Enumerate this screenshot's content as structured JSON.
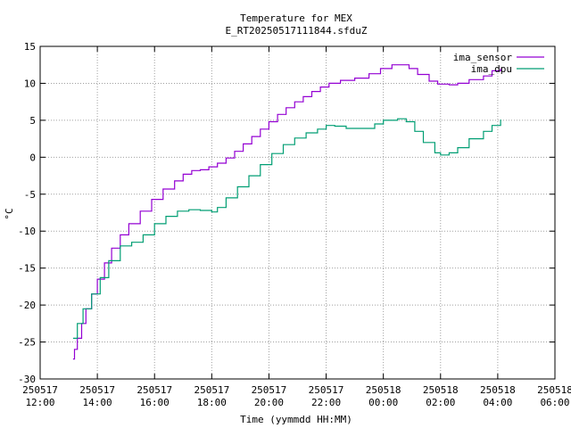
{
  "chart_data": {
    "type": "line",
    "title": "Temperature for MEX",
    "subtitle": "E_RT20250517111844.sfduZ",
    "xlabel": "Time (yymmdd HH:MM)",
    "ylabel": "°C",
    "ylim": [
      -30,
      15
    ],
    "xlim_hours": [
      12,
      30
    ],
    "grid": true,
    "legend_position": "top-right",
    "y_ticks": [
      -30,
      -25,
      -20,
      -15,
      -10,
      -5,
      0,
      5,
      10,
      15
    ],
    "x_ticks": [
      {
        "hour": 12,
        "date": "250517",
        "time": "12:00"
      },
      {
        "hour": 14,
        "date": "250517",
        "time": "14:00"
      },
      {
        "hour": 16,
        "date": "250517",
        "time": "16:00"
      },
      {
        "hour": 18,
        "date": "250517",
        "time": "18:00"
      },
      {
        "hour": 20,
        "date": "250517",
        "time": "20:00"
      },
      {
        "hour": 22,
        "date": "250517",
        "time": "22:00"
      },
      {
        "hour": 24,
        "date": "250518",
        "time": "00:00"
      },
      {
        "hour": 26,
        "date": "250518",
        "time": "02:00"
      },
      {
        "hour": 28,
        "date": "250518",
        "time": "04:00"
      },
      {
        "hour": 30,
        "date": "250518",
        "time": "06:00"
      }
    ],
    "series": [
      {
        "name": "ima_sensor",
        "color": "#9400d3",
        "points": [
          [
            13.15,
            -27.3
          ],
          [
            13.2,
            -26.0
          ],
          [
            13.3,
            -24.5
          ],
          [
            13.45,
            -22.5
          ],
          [
            13.6,
            -20.5
          ],
          [
            13.8,
            -18.5
          ],
          [
            14.0,
            -16.5
          ],
          [
            14.25,
            -14.3
          ],
          [
            14.5,
            -12.3
          ],
          [
            14.8,
            -10.5
          ],
          [
            15.1,
            -9.0
          ],
          [
            15.5,
            -7.3
          ],
          [
            15.9,
            -5.7
          ],
          [
            16.3,
            -4.3
          ],
          [
            16.7,
            -3.2
          ],
          [
            17.0,
            -2.3
          ],
          [
            17.3,
            -1.8
          ],
          [
            17.6,
            -1.7
          ],
          [
            17.9,
            -1.3
          ],
          [
            18.2,
            -0.8
          ],
          [
            18.5,
            -0.1
          ],
          [
            18.8,
            0.8
          ],
          [
            19.1,
            1.8
          ],
          [
            19.4,
            2.8
          ],
          [
            19.7,
            3.8
          ],
          [
            20.0,
            4.8
          ],
          [
            20.3,
            5.8
          ],
          [
            20.6,
            6.7
          ],
          [
            20.9,
            7.5
          ],
          [
            21.2,
            8.2
          ],
          [
            21.5,
            8.9
          ],
          [
            21.8,
            9.5
          ],
          [
            22.1,
            10.0
          ],
          [
            22.5,
            10.4
          ],
          [
            23.0,
            10.7
          ],
          [
            23.5,
            11.3
          ],
          [
            23.9,
            12.0
          ],
          [
            24.3,
            12.5
          ],
          [
            24.6,
            12.5
          ],
          [
            24.9,
            12.0
          ],
          [
            25.2,
            11.2
          ],
          [
            25.6,
            10.3
          ],
          [
            25.9,
            9.9
          ],
          [
            26.3,
            9.8
          ],
          [
            26.6,
            10.0
          ],
          [
            27.0,
            10.5
          ],
          [
            27.5,
            11.0
          ],
          [
            27.8,
            11.7
          ],
          [
            28.1,
            12.0
          ]
        ]
      },
      {
        "name": "ima_dpu",
        "color": "#009e73",
        "points": [
          [
            13.15,
            -24.5
          ],
          [
            13.3,
            -22.5
          ],
          [
            13.5,
            -20.5
          ],
          [
            13.8,
            -18.5
          ],
          [
            14.1,
            -16.3
          ],
          [
            14.4,
            -14.0
          ],
          [
            14.8,
            -12.0
          ],
          [
            15.2,
            -11.5
          ],
          [
            15.6,
            -10.5
          ],
          [
            16.0,
            -9.0
          ],
          [
            16.4,
            -8.0
          ],
          [
            16.8,
            -7.3
          ],
          [
            17.2,
            -7.1
          ],
          [
            17.6,
            -7.2
          ],
          [
            18.0,
            -7.4
          ],
          [
            18.2,
            -6.8
          ],
          [
            18.5,
            -5.5
          ],
          [
            18.9,
            -4.0
          ],
          [
            19.3,
            -2.5
          ],
          [
            19.7,
            -1.0
          ],
          [
            20.1,
            0.5
          ],
          [
            20.5,
            1.7
          ],
          [
            20.9,
            2.6
          ],
          [
            21.3,
            3.3
          ],
          [
            21.7,
            3.8
          ],
          [
            22.0,
            4.3
          ],
          [
            22.3,
            4.2
          ],
          [
            22.7,
            3.9
          ],
          [
            23.2,
            3.9
          ],
          [
            23.7,
            4.5
          ],
          [
            24.0,
            5.0
          ],
          [
            24.5,
            5.2
          ],
          [
            24.8,
            4.8
          ],
          [
            25.1,
            3.5
          ],
          [
            25.4,
            2.0
          ],
          [
            25.8,
            0.6
          ],
          [
            26.0,
            0.3
          ],
          [
            26.3,
            0.6
          ],
          [
            26.6,
            1.3
          ],
          [
            27.0,
            2.5
          ],
          [
            27.5,
            3.5
          ],
          [
            27.8,
            4.3
          ],
          [
            28.1,
            5.1
          ]
        ]
      }
    ]
  }
}
